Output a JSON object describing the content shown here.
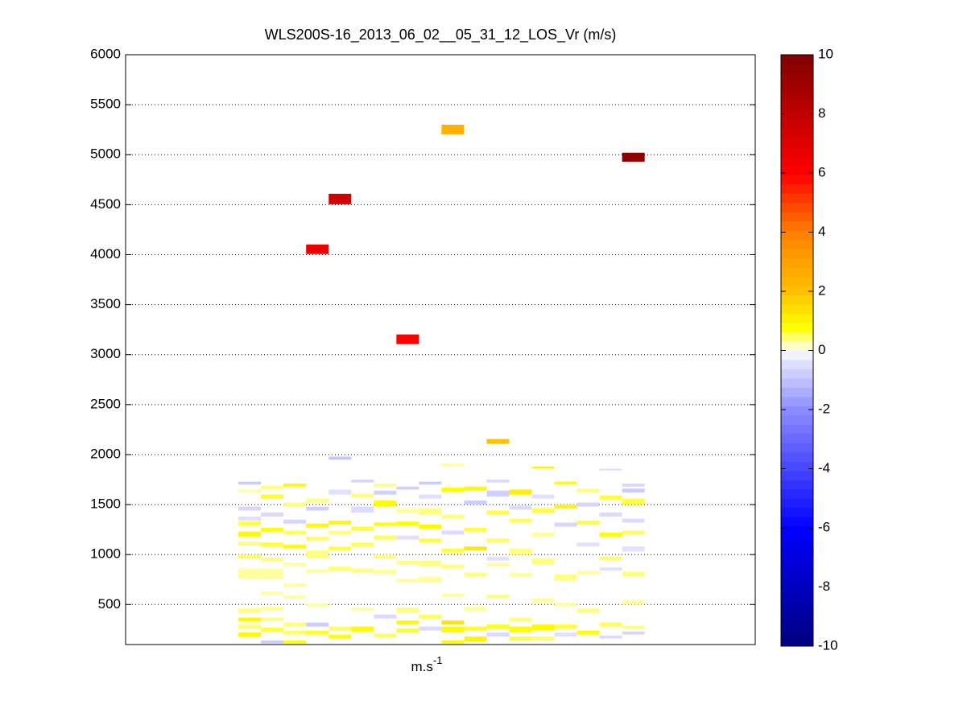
{
  "chart_data": {
    "type": "heatmap",
    "title": "WLS200S-16_2013_06_02__05_31_12_LOS_Vr (m/s)",
    "xlabel": {
      "text": "m.s",
      "superscript": "-1"
    },
    "xlim": [
      -0.5,
      27.4
    ],
    "ylim": [
      100,
      6000
    ],
    "yticks": [
      500,
      1000,
      1500,
      2000,
      2500,
      3000,
      3500,
      4000,
      4500,
      5000,
      5500,
      6000
    ],
    "grid": true,
    "clim": [
      -10,
      10
    ],
    "cticks": [
      -10,
      -8,
      -6,
      -4,
      -2,
      0,
      2,
      4,
      6,
      8,
      10
    ],
    "colormap": [
      [
        -10,
        "#00007f"
      ],
      [
        -6,
        "#0000ff"
      ],
      [
        -2,
        "#8c8cff"
      ],
      [
        -0.3,
        "#e6e6ff"
      ],
      [
        0,
        "#ffffff"
      ],
      [
        0.3,
        "#ffffa0"
      ],
      [
        0.8,
        "#ffff00"
      ],
      [
        2,
        "#ffc000"
      ],
      [
        4,
        "#ff8000"
      ],
      [
        6,
        "#ff0000"
      ],
      [
        8,
        "#c00000"
      ],
      [
        10,
        "#800000"
      ]
    ],
    "cells": [
      [
        8,
        4006,
        4102,
        6.5
      ],
      [
        9,
        4504,
        4609,
        7.5
      ],
      [
        12,
        3105,
        3202,
        6
      ],
      [
        14,
        5204,
        5300,
        2.5
      ],
      [
        16,
        2108,
        2156,
        2
      ],
      [
        22,
        4930,
        5020,
        9.5
      ],
      [
        5,
        180,
        220,
        0.9
      ],
      [
        5,
        260,
        300,
        0.4
      ],
      [
        5,
        330,
        370,
        0.9
      ],
      [
        5,
        420,
        460,
        0.4
      ],
      [
        5,
        760,
        860,
        0.3
      ],
      [
        5,
        960,
        1000,
        0.5
      ],
      [
        5,
        1090,
        1130,
        0.4
      ],
      [
        5,
        1180,
        1230,
        0.9
      ],
      [
        5,
        1290,
        1330,
        0.6
      ],
      [
        5,
        1340,
        1380,
        -0.4
      ],
      [
        5,
        1440,
        1480,
        -0.6
      ],
      [
        5,
        1620,
        1650,
        0.3
      ],
      [
        5,
        1700,
        1730,
        -0.8
      ],
      [
        6,
        110,
        140,
        -0.8
      ],
      [
        6,
        230,
        270,
        0.6
      ],
      [
        6,
        340,
        370,
        0.4
      ],
      [
        6,
        440,
        480,
        0.3
      ],
      [
        6,
        600,
        630,
        0.3
      ],
      [
        6,
        760,
        860,
        0.3
      ],
      [
        6,
        930,
        970,
        0.4
      ],
      [
        6,
        1080,
        1120,
        0.6
      ],
      [
        6,
        1230,
        1270,
        0.8
      ],
      [
        6,
        1380,
        1420,
        -0.5
      ],
      [
        6,
        1560,
        1600,
        0.7
      ],
      [
        6,
        1650,
        1690,
        0.4
      ],
      [
        7,
        110,
        140,
        0.8
      ],
      [
        7,
        200,
        240,
        0.5
      ],
      [
        7,
        280,
        320,
        0.4
      ],
      [
        7,
        560,
        590,
        0.3
      ],
      [
        7,
        680,
        710,
        0.3
      ],
      [
        7,
        880,
        920,
        0.3
      ],
      [
        7,
        1060,
        1100,
        0.8
      ],
      [
        7,
        1200,
        1240,
        0.5
      ],
      [
        7,
        1310,
        1350,
        -0.6
      ],
      [
        7,
        1480,
        1520,
        0.4
      ],
      [
        7,
        1680,
        1710,
        0.9
      ],
      [
        8,
        200,
        240,
        0.7
      ],
      [
        8,
        280,
        320,
        -0.8
      ],
      [
        8,
        480,
        510,
        0.3
      ],
      [
        8,
        820,
        850,
        0.3
      ],
      [
        8,
        960,
        1040,
        0.4
      ],
      [
        8,
        1140,
        1180,
        0.5
      ],
      [
        8,
        1270,
        1310,
        0.9
      ],
      [
        8,
        1440,
        1480,
        -0.7
      ],
      [
        8,
        1520,
        1560,
        0.4
      ],
      [
        9,
        160,
        200,
        0.8
      ],
      [
        9,
        240,
        280,
        0.5
      ],
      [
        9,
        840,
        880,
        0.4
      ],
      [
        9,
        1040,
        1080,
        0.6
      ],
      [
        9,
        1200,
        1240,
        0.4
      ],
      [
        9,
        1300,
        1340,
        0.9
      ],
      [
        9,
        1600,
        1650,
        -0.4
      ],
      [
        9,
        1950,
        1980,
        -0.9
      ],
      [
        10,
        230,
        280,
        0.9
      ],
      [
        10,
        440,
        470,
        0.3
      ],
      [
        10,
        820,
        860,
        0.4
      ],
      [
        10,
        1080,
        1120,
        0.5
      ],
      [
        10,
        1240,
        1280,
        0.6
      ],
      [
        10,
        1420,
        1480,
        -0.5
      ],
      [
        10,
        1570,
        1610,
        0.4
      ],
      [
        10,
        1720,
        1750,
        -0.6
      ],
      [
        11,
        170,
        210,
        0.5
      ],
      [
        11,
        360,
        400,
        -0.5
      ],
      [
        11,
        800,
        850,
        0.3
      ],
      [
        11,
        960,
        1000,
        0.4
      ],
      [
        11,
        1150,
        1190,
        0.5
      ],
      [
        11,
        1290,
        1320,
        0.8
      ],
      [
        11,
        1480,
        1540,
        0.9
      ],
      [
        11,
        1600,
        1640,
        -0.7
      ],
      [
        11,
        1680,
        1710,
        0.4
      ],
      [
        12,
        220,
        260,
        0.7
      ],
      [
        12,
        300,
        340,
        0.9
      ],
      [
        12,
        420,
        470,
        0.4
      ],
      [
        12,
        720,
        760,
        0.3
      ],
      [
        12,
        900,
        940,
        0.4
      ],
      [
        12,
        1150,
        1190,
        -0.4
      ],
      [
        12,
        1290,
        1330,
        0.8
      ],
      [
        12,
        1420,
        1460,
        0.3
      ],
      [
        12,
        1650,
        1680,
        -0.7
      ],
      [
        13,
        240,
        280,
        -0.5
      ],
      [
        13,
        360,
        400,
        0.5
      ],
      [
        13,
        720,
        780,
        0.3
      ],
      [
        13,
        880,
        940,
        0.4
      ],
      [
        13,
        1120,
        1160,
        0.6
      ],
      [
        13,
        1260,
        1300,
        0.9
      ],
      [
        13,
        1400,
        1460,
        0.4
      ],
      [
        13,
        1560,
        1600,
        -0.4
      ],
      [
        13,
        1700,
        1730,
        -0.8
      ],
      [
        14,
        110,
        140,
        0.9
      ],
      [
        14,
        220,
        280,
        0.9
      ],
      [
        14,
        300,
        340,
        1.3
      ],
      [
        14,
        580,
        610,
        0.3
      ],
      [
        14,
        860,
        900,
        0.4
      ],
      [
        14,
        1020,
        1060,
        0.6
      ],
      [
        14,
        1200,
        1240,
        -0.5
      ],
      [
        14,
        1360,
        1400,
        0.4
      ],
      [
        14,
        1630,
        1670,
        0.8
      ],
      [
        14,
        1880,
        1910,
        0.3
      ],
      [
        15,
        130,
        180,
        1.0
      ],
      [
        15,
        240,
        280,
        0.7
      ],
      [
        15,
        440,
        480,
        0.3
      ],
      [
        15,
        780,
        820,
        0.4
      ],
      [
        15,
        1040,
        1080,
        1.2
      ],
      [
        15,
        1230,
        1270,
        0.6
      ],
      [
        15,
        1500,
        1540,
        -0.8
      ],
      [
        15,
        1640,
        1680,
        0.9
      ],
      [
        16,
        180,
        220,
        -0.5
      ],
      [
        16,
        260,
        300,
        0.7
      ],
      [
        16,
        560,
        600,
        0.4
      ],
      [
        16,
        880,
        920,
        0.3
      ],
      [
        16,
        940,
        980,
        -0.4
      ],
      [
        16,
        1120,
        1160,
        0.5
      ],
      [
        16,
        1400,
        1440,
        0.6
      ],
      [
        16,
        1580,
        1640,
        -0.7
      ],
      [
        16,
        1720,
        1750,
        -0.5
      ],
      [
        17,
        140,
        180,
        0.6
      ],
      [
        17,
        220,
        280,
        0.8
      ],
      [
        17,
        330,
        370,
        0.4
      ],
      [
        17,
        780,
        820,
        0.3
      ],
      [
        17,
        1000,
        1060,
        0.4
      ],
      [
        17,
        1320,
        1360,
        0.5
      ],
      [
        17,
        1450,
        1490,
        -0.5
      ],
      [
        17,
        1600,
        1650,
        1.1
      ],
      [
        18,
        140,
        180,
        0.5
      ],
      [
        18,
        240,
        300,
        0.9
      ],
      [
        18,
        520,
        560,
        0.3
      ],
      [
        18,
        900,
        960,
        0.4
      ],
      [
        18,
        1180,
        1220,
        0.3
      ],
      [
        18,
        1420,
        1460,
        0.6
      ],
      [
        18,
        1560,
        1600,
        -0.4
      ],
      [
        18,
        1860,
        1880,
        1.0
      ],
      [
        19,
        180,
        220,
        -0.4
      ],
      [
        19,
        260,
        300,
        0.6
      ],
      [
        19,
        480,
        520,
        0.3
      ],
      [
        19,
        740,
        800,
        0.4
      ],
      [
        19,
        1280,
        1320,
        -0.6
      ],
      [
        19,
        1460,
        1500,
        0.9
      ],
      [
        19,
        1700,
        1730,
        0.8
      ],
      [
        20,
        200,
        240,
        0.8
      ],
      [
        20,
        420,
        460,
        0.4
      ],
      [
        20,
        800,
        840,
        0.3
      ],
      [
        20,
        1080,
        1120,
        -0.4
      ],
      [
        20,
        1300,
        1340,
        0.6
      ],
      [
        20,
        1480,
        1520,
        -0.6
      ],
      [
        20,
        1620,
        1660,
        0.4
      ],
      [
        21,
        160,
        190,
        -0.5
      ],
      [
        21,
        280,
        320,
        0.5
      ],
      [
        21,
        840,
        870,
        -0.4
      ],
      [
        21,
        940,
        980,
        0.4
      ],
      [
        21,
        1180,
        1220,
        0.8
      ],
      [
        21,
        1380,
        1420,
        -0.5
      ],
      [
        21,
        1550,
        1590,
        0.6
      ],
      [
        21,
        1840,
        1860,
        -0.4
      ],
      [
        22,
        200,
        230,
        -0.6
      ],
      [
        22,
        260,
        290,
        0.4
      ],
      [
        22,
        500,
        540,
        0.3
      ],
      [
        22,
        780,
        830,
        0.4
      ],
      [
        22,
        1030,
        1080,
        -0.4
      ],
      [
        22,
        1200,
        1240,
        0.5
      ],
      [
        22,
        1320,
        1360,
        -0.5
      ],
      [
        22,
        1500,
        1560,
        0.6
      ],
      [
        22,
        1620,
        1660,
        -0.8
      ],
      [
        22,
        1680,
        1710,
        -0.6
      ]
    ]
  }
}
